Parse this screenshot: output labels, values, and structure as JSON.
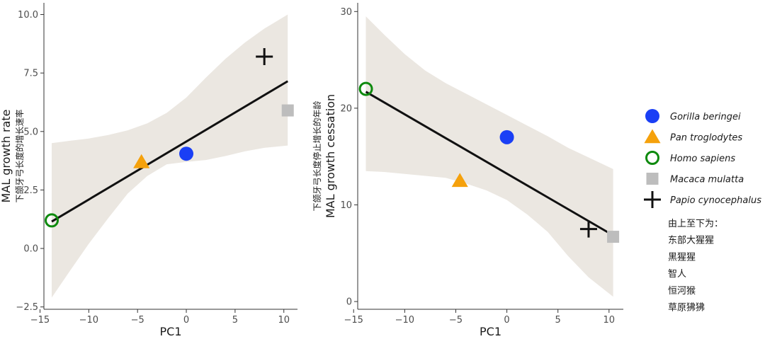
{
  "chart_data": [
    {
      "type": "scatter",
      "xlabel": "PC1",
      "ylabel": "MAL growth rate",
      "ylabel_cn": "下颌牙弓长度的增长速率",
      "xlim": [
        -14.6,
        11.4
      ],
      "ylim": [
        -2.6,
        10.5
      ],
      "xticks": [
        -15,
        -10,
        -5,
        0,
        5,
        10
      ],
      "xtick_labels": [
        "−15",
        "−10",
        "−5",
        "0",
        "5",
        "10"
      ],
      "yticks": [
        -2.5,
        0,
        2.5,
        5,
        7.5,
        10
      ],
      "ytick_labels": [
        "−2.5",
        "0.0",
        "2.5",
        "5.0",
        "7.5",
        "10.0"
      ],
      "grid": false,
      "points": [
        {
          "species": "Gorilla beringei",
          "x": 0,
          "y": 4.05
        },
        {
          "species": "Pan troglodytes",
          "x": -4.6,
          "y": 3.7
        },
        {
          "species": "Homo sapiens",
          "x": -13.8,
          "y": 1.2
        },
        {
          "species": "Macaca mulatta",
          "x": 10.4,
          "y": 5.9
        },
        {
          "species": "Papio cynocephalus",
          "x": 8,
          "y": 8.2
        }
      ],
      "fit_line": {
        "x": [
          -13.8,
          10.4
        ],
        "y": [
          1.15,
          7.15
        ]
      },
      "confidence_band": {
        "x": [
          -13.8,
          -12,
          -10,
          -8,
          -6,
          -4,
          -2,
          0,
          2,
          4,
          6,
          8,
          10.4
        ],
        "lower": [
          -2.1,
          -1.0,
          0.2,
          1.3,
          2.35,
          3.1,
          3.6,
          3.7,
          3.78,
          3.95,
          4.15,
          4.3,
          4.4
        ],
        "upper": [
          4.5,
          4.6,
          4.7,
          4.85,
          5.05,
          5.35,
          5.8,
          6.45,
          7.3,
          8.1,
          8.8,
          9.4,
          10.0
        ]
      }
    },
    {
      "type": "scatter",
      "xlabel": "PC1",
      "ylabel": "MAL growth cessation",
      "ylabel_cn": "下颌牙弓长度停止增长的年龄",
      "xlim": [
        -14.6,
        11.4
      ],
      "ylim": [
        -0.8,
        30.9
      ],
      "xticks": [
        -15,
        -10,
        -5,
        0,
        5,
        10
      ],
      "xtick_labels": [
        "−15",
        "−10",
        "−5",
        "0",
        "5",
        "10"
      ],
      "yticks": [
        0,
        10,
        20,
        30
      ],
      "ytick_labels": [
        "0",
        "10",
        "20",
        "30"
      ],
      "grid": false,
      "points": [
        {
          "species": "Gorilla beringei",
          "x": 0,
          "y": 17
        },
        {
          "species": "Pan troglodytes",
          "x": -4.6,
          "y": 12.5
        },
        {
          "species": "Homo sapiens",
          "x": -13.8,
          "y": 22
        },
        {
          "species": "Macaca mulatta",
          "x": 10.4,
          "y": 6.7
        },
        {
          "species": "Papio cynocephalus",
          "x": 8,
          "y": 7.5
        }
      ],
      "fit_line": {
        "x": [
          -13.8,
          10.4
        ],
        "y": [
          21.7,
          6.85
        ]
      },
      "confidence_band": {
        "x": [
          -13.8,
          -12,
          -10,
          -8,
          -6,
          -4,
          -2,
          0,
          2,
          4,
          6,
          8,
          10.4
        ],
        "lower": [
          13.5,
          13.4,
          13.2,
          13.0,
          12.8,
          12.2,
          11.5,
          10.5,
          9.0,
          7.2,
          4.7,
          2.5,
          0.5
        ],
        "upper": [
          29.5,
          27.6,
          25.6,
          23.9,
          22.6,
          21.5,
          20.4,
          19.3,
          18.2,
          17.1,
          15.9,
          14.9,
          13.7
        ]
      }
    }
  ],
  "legend": {
    "position": "right",
    "items": [
      {
        "label": "Gorilla beringei",
        "shape": "circle-filled",
        "color": "#1a3ff5"
      },
      {
        "label": "Pan troglodytes",
        "shape": "triangle",
        "color": "#f5a10c"
      },
      {
        "label": "Homo sapiens",
        "shape": "circle-open",
        "color": "#0e8a0e"
      },
      {
        "label": "Macaca mulatta",
        "shape": "square",
        "color": "#bdbdbd"
      },
      {
        "label": "Papio cynocephalus",
        "shape": "plus",
        "color": "#111111"
      }
    ]
  },
  "note": {
    "title": "由上至下为：",
    "lines": [
      "东部大猩猩",
      "黑猩猩",
      "智人",
      "恒河猴",
      "草原狒狒"
    ]
  },
  "colors": {
    "band": "#ebe7e1",
    "fit": "#111111",
    "axis": "#333333"
  }
}
